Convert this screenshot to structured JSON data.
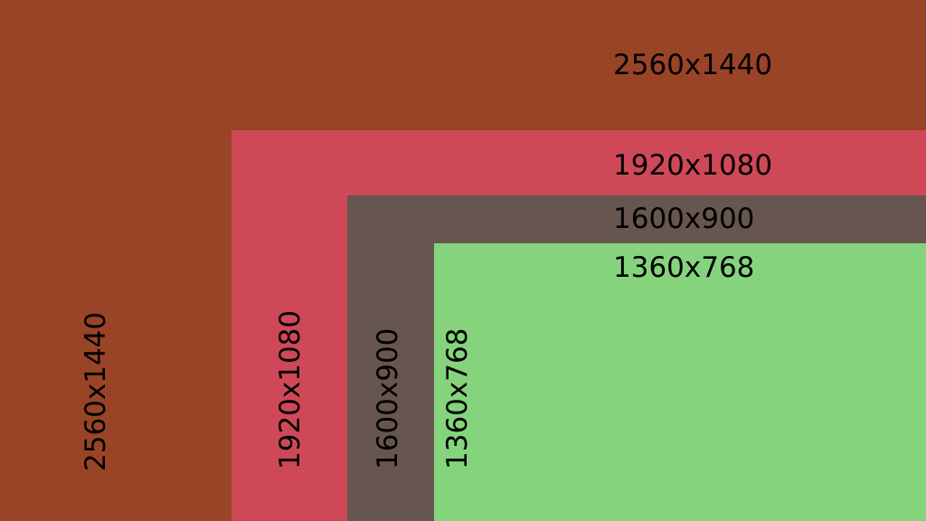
{
  "resolutions": [
    {
      "label": "2560x1440",
      "color": "#9a4427"
    },
    {
      "label": "1920x1080",
      "color": "#cf4858"
    },
    {
      "label": "1600x900",
      "color": "#67554f"
    },
    {
      "label": "1360x768",
      "color": "#85d47d"
    }
  ]
}
